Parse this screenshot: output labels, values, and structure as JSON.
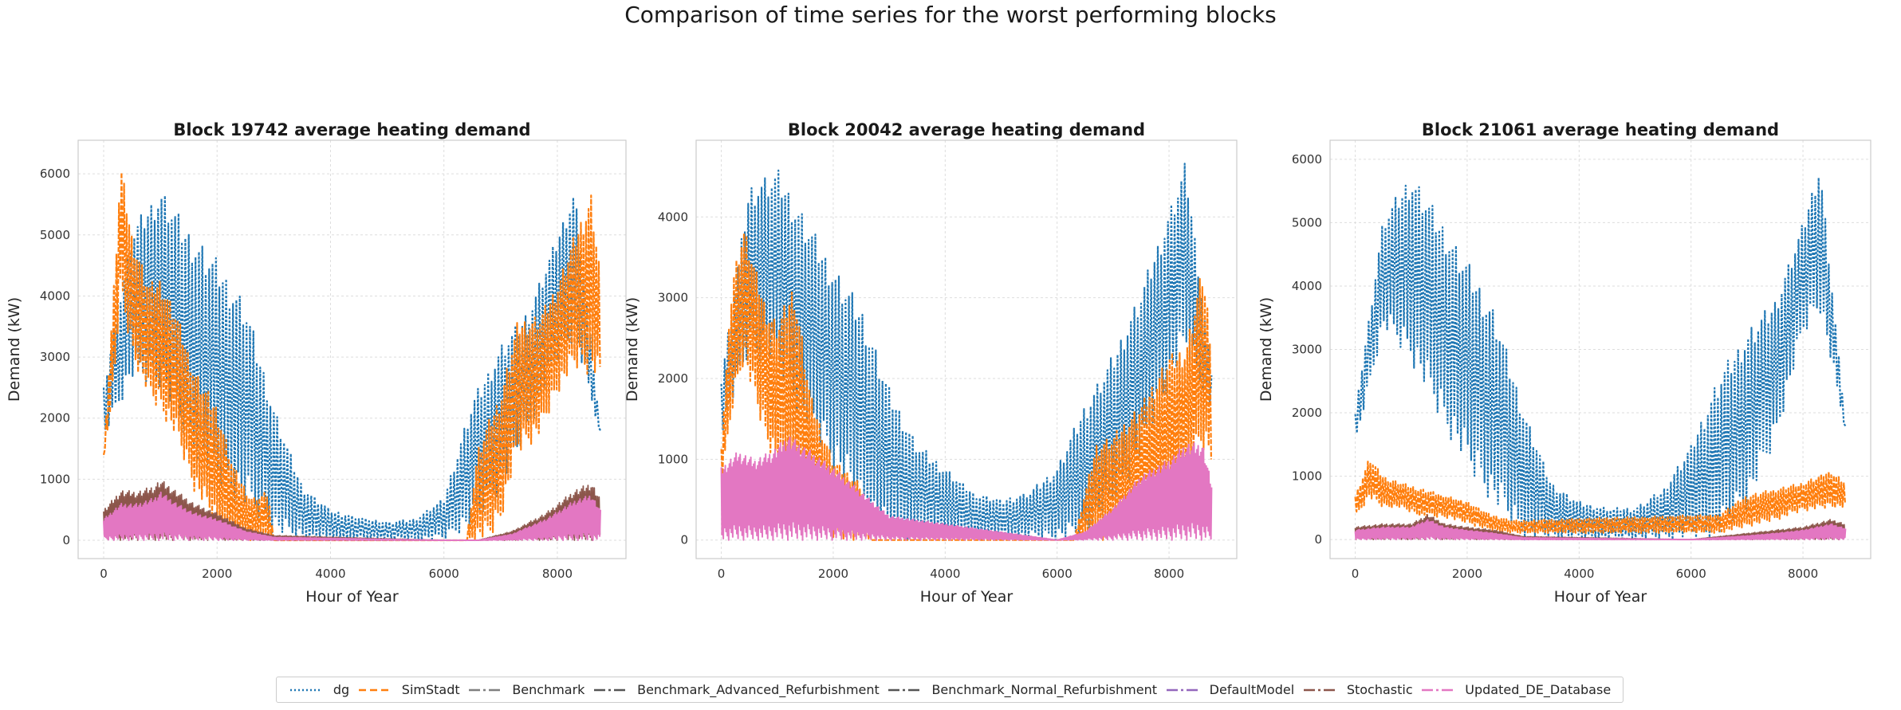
{
  "suptitle": "Comparison of time series for the worst performing blocks",
  "colors": {
    "dg": "#1f77b4",
    "SimStadt": "#ff7f0e",
    "Benchmark": "#7f7f7f",
    "Benchmark_Advanced_Refurbishment": "#555555",
    "Benchmark_Normal_Refurbishment": "#555555",
    "DefaultModel": "#9467bd",
    "Stochastic": "#8c564b",
    "Updated_DE_Database": "#e377c2"
  },
  "legend": [
    {
      "label": "dg",
      "color": "#1f77b4",
      "dash": "2,3"
    },
    {
      "label": "SimStadt",
      "color": "#ff7f0e",
      "dash": "9,5"
    },
    {
      "label": "Benchmark",
      "color": "#7f7f7f",
      "dash": "14,4,3,4"
    },
    {
      "label": "Benchmark_Advanced_Refurbishment",
      "color": "#555555",
      "dash": "14,4,3,4"
    },
    {
      "label": "Benchmark_Normal_Refurbishment",
      "color": "#555555",
      "dash": "14,4,3,4"
    },
    {
      "label": "DefaultModel",
      "color": "#9467bd",
      "dash": "14,4,3,4"
    },
    {
      "label": "Stochastic",
      "color": "#8c564b",
      "dash": "14,4,3,4"
    },
    {
      "label": "Updated_DE_Database",
      "color": "#e377c2",
      "dash": "14,4,3,4"
    }
  ],
  "chart_data": [
    {
      "type": "line",
      "title": "Block 19742 average heating demand",
      "xlabel": "Hour of Year",
      "ylabel": "Demand (kW)",
      "xlim": [
        -450,
        9210
      ],
      "ylim": [
        -300,
        6550
      ],
      "xticks": [
        0,
        2000,
        4000,
        6000,
        8000
      ],
      "yticks": [
        0,
        1000,
        2000,
        3000,
        4000,
        5000,
        6000
      ],
      "grid": true,
      "series": [
        {
          "name": "dg",
          "x": [
            0,
            500,
            1000,
            1500,
            2000,
            2500,
            3000,
            3500,
            4000,
            4500,
            5000,
            5500,
            6000,
            6500,
            7000,
            7500,
            8000,
            8300,
            8760
          ],
          "upper": [
            2500,
            5100,
            5800,
            5100,
            4600,
            3900,
            2200,
            900,
            500,
            380,
            300,
            350,
            700,
            2300,
            3200,
            3800,
            5000,
            5800,
            1800
          ],
          "lower": [
            1700,
            2600,
            2500,
            1500,
            900,
            500,
            100,
            0,
            0,
            0,
            0,
            0,
            0,
            200,
            800,
            1800,
            2900,
            3300,
            1700
          ]
        },
        {
          "name": "SimStadt",
          "x": [
            0,
            200,
            300,
            500,
            800,
            1000,
            1300,
            1600,
            2000,
            2300,
            2600,
            2900,
            3000,
            6400,
            6600,
            6800,
            7000,
            7300,
            7700,
            8000,
            8300,
            8600,
            8760
          ],
          "upper": [
            1400,
            4500,
            6200,
            5000,
            4200,
            4300,
            3700,
            2800,
            2200,
            1200,
            700,
            800,
            0,
            0,
            1500,
            2000,
            2400,
            3600,
            3700,
            4200,
            5000,
            5700,
            4400
          ],
          "lower": [
            1300,
            2700,
            4000,
            3000,
            2300,
            2100,
            1600,
            800,
            200,
            0,
            0,
            0,
            0,
            0,
            0,
            0,
            300,
            1400,
            1700,
            2400,
            2800,
            2700,
            2600
          ]
        },
        {
          "name": "Stochastic",
          "x": [
            0,
            300,
            600,
            900,
            1000,
            1300,
            1600,
            2000,
            2500,
            3000,
            6000,
            6600,
            7200,
            7800,
            8300,
            8600,
            8760
          ],
          "upper": [
            500,
            820,
            800,
            900,
            1000,
            800,
            600,
            450,
            200,
            80,
            0,
            0,
            150,
            450,
            820,
            950,
            700
          ],
          "lower": [
            0,
            0,
            0,
            0,
            0,
            0,
            0,
            0,
            0,
            0,
            0,
            0,
            0,
            0,
            0,
            0,
            0
          ]
        },
        {
          "name": "Updated_DE_Database",
          "x": [
            0,
            300,
            600,
            900,
            1000,
            1300,
            1600,
            2000,
            2500,
            3000,
            6000,
            6600,
            7200,
            7800,
            8300,
            8600,
            8760
          ],
          "upper": [
            350,
            600,
            600,
            700,
            800,
            600,
            450,
            350,
            150,
            50,
            0,
            0,
            100,
            350,
            650,
            750,
            500
          ],
          "lower": [
            0,
            0,
            0,
            0,
            0,
            0,
            0,
            0,
            0,
            0,
            0,
            0,
            0,
            0,
            0,
            0,
            0
          ]
        }
      ]
    },
    {
      "type": "line",
      "title": "Block 20042 average heating demand",
      "xlabel": "Hour of Year",
      "ylabel": "Demand (kW)",
      "xlim": [
        -450,
        9210
      ],
      "ylim": [
        -230,
        4950
      ],
      "xticks": [
        0,
        2000,
        4000,
        6000,
        8000
      ],
      "yticks": [
        0,
        1000,
        2000,
        3000,
        4000
      ],
      "grid": true,
      "series": [
        {
          "name": "dg",
          "x": [
            0,
            500,
            1000,
            1500,
            2000,
            2500,
            3000,
            3500,
            4000,
            4500,
            5000,
            5500,
            6000,
            6500,
            7000,
            7500,
            8000,
            8300,
            8760
          ],
          "upper": [
            2000,
            4400,
            4600,
            4000,
            3400,
            2900,
            1900,
            1200,
            900,
            600,
            500,
            600,
            900,
            1700,
            2300,
            3100,
            4100,
            4700,
            2100
          ],
          "lower": [
            1300,
            2300,
            2100,
            1400,
            900,
            300,
            0,
            0,
            0,
            0,
            0,
            0,
            0,
            0,
            400,
            1000,
            1900,
            2300,
            1600
          ]
        },
        {
          "name": "SimStadt",
          "x": [
            0,
            200,
            400,
            600,
            800,
            1000,
            1300,
            1600,
            2000,
            2500,
            2700,
            6300,
            6700,
            7000,
            7500,
            8000,
            8300,
            8600,
            8760
          ],
          "upper": [
            1200,
            3300,
            3900,
            3400,
            2900,
            2700,
            3200,
            1800,
            1000,
            700,
            0,
            0,
            1200,
            1300,
            1700,
            2300,
            2400,
            3400,
            2500
          ],
          "lower": [
            600,
            1600,
            2200,
            1700,
            1200,
            900,
            700,
            300,
            0,
            0,
            0,
            0,
            0,
            0,
            100,
            400,
            700,
            1100,
            900
          ]
        },
        {
          "name": "Updated_DE_Database",
          "x": [
            0,
            300,
            600,
            900,
            1200,
            1600,
            2000,
            2500,
            3000,
            6000,
            6500,
            7000,
            7500,
            8000,
            8300,
            8600,
            8760
          ],
          "upper": [
            900,
            1100,
            1000,
            1100,
            1300,
            1100,
            900,
            600,
            300,
            0,
            100,
            400,
            800,
            1000,
            1200,
            1200,
            700
          ],
          "lower": [
            0,
            0,
            0,
            0,
            0,
            0,
            0,
            0,
            0,
            0,
            0,
            0,
            0,
            0,
            0,
            0,
            0
          ]
        }
      ]
    },
    {
      "type": "line",
      "title": "Block 21061 average heating demand",
      "xlabel": "Hour of Year",
      "ylabel": "Demand (kW)",
      "xlim": [
        -450,
        9210
      ],
      "ylim": [
        -300,
        6300
      ],
      "xticks": [
        0,
        2000,
        4000,
        6000,
        8000
      ],
      "yticks": [
        0,
        1000,
        2000,
        3000,
        4000,
        5000,
        6000
      ],
      "grid": true,
      "series": [
        {
          "name": "dg",
          "x": [
            0,
            500,
            1000,
            1500,
            2000,
            2500,
            3000,
            3500,
            4000,
            4500,
            5000,
            5500,
            6000,
            6500,
            7000,
            7500,
            8000,
            8300,
            8760
          ],
          "upper": [
            2000,
            5100,
            5800,
            5100,
            4400,
            3600,
            2100,
            900,
            600,
            500,
            500,
            800,
            1500,
            2600,
            3300,
            3800,
            5000,
            6000,
            1800
          ],
          "lower": [
            1500,
            3300,
            2800,
            1900,
            1100,
            500,
            0,
            0,
            0,
            0,
            0,
            0,
            0,
            0,
            500,
            1500,
            3200,
            3600,
            1700
          ]
        },
        {
          "name": "SimStadt",
          "x": [
            0,
            250,
            500,
            800,
            1200,
            1600,
            2000,
            2400,
            2800,
            6500,
            7000,
            7500,
            8000,
            8500,
            8760
          ],
          "upper": [
            700,
            1300,
            1000,
            900,
            800,
            700,
            600,
            400,
            300,
            400,
            700,
            800,
            900,
            1100,
            900
          ],
          "lower": [
            350,
            650,
            500,
            500,
            350,
            350,
            250,
            150,
            100,
            100,
            200,
            300,
            450,
            500,
            500
          ]
        },
        {
          "name": "Stochastic",
          "x": [
            0,
            500,
            1000,
            1300,
            1600,
            2000,
            2500,
            3000,
            6000,
            7000,
            7500,
            8000,
            8500,
            8760
          ],
          "upper": [
            200,
            250,
            250,
            400,
            250,
            200,
            150,
            50,
            0,
            100,
            150,
            200,
            320,
            250
          ],
          "lower": [
            0,
            0,
            0,
            0,
            0,
            0,
            0,
            0,
            0,
            0,
            0,
            0,
            0,
            0
          ]
        },
        {
          "name": "Updated_DE_Database",
          "x": [
            0,
            500,
            1000,
            1300,
            1600,
            2000,
            2500,
            3000,
            6000,
            7000,
            7500,
            8000,
            8500,
            8760
          ],
          "upper": [
            150,
            200,
            200,
            320,
            200,
            150,
            100,
            30,
            0,
            60,
            100,
            150,
            250,
            180
          ],
          "lower": [
            0,
            0,
            0,
            0,
            0,
            0,
            0,
            0,
            0,
            0,
            0,
            0,
            0,
            0
          ]
        }
      ]
    }
  ]
}
